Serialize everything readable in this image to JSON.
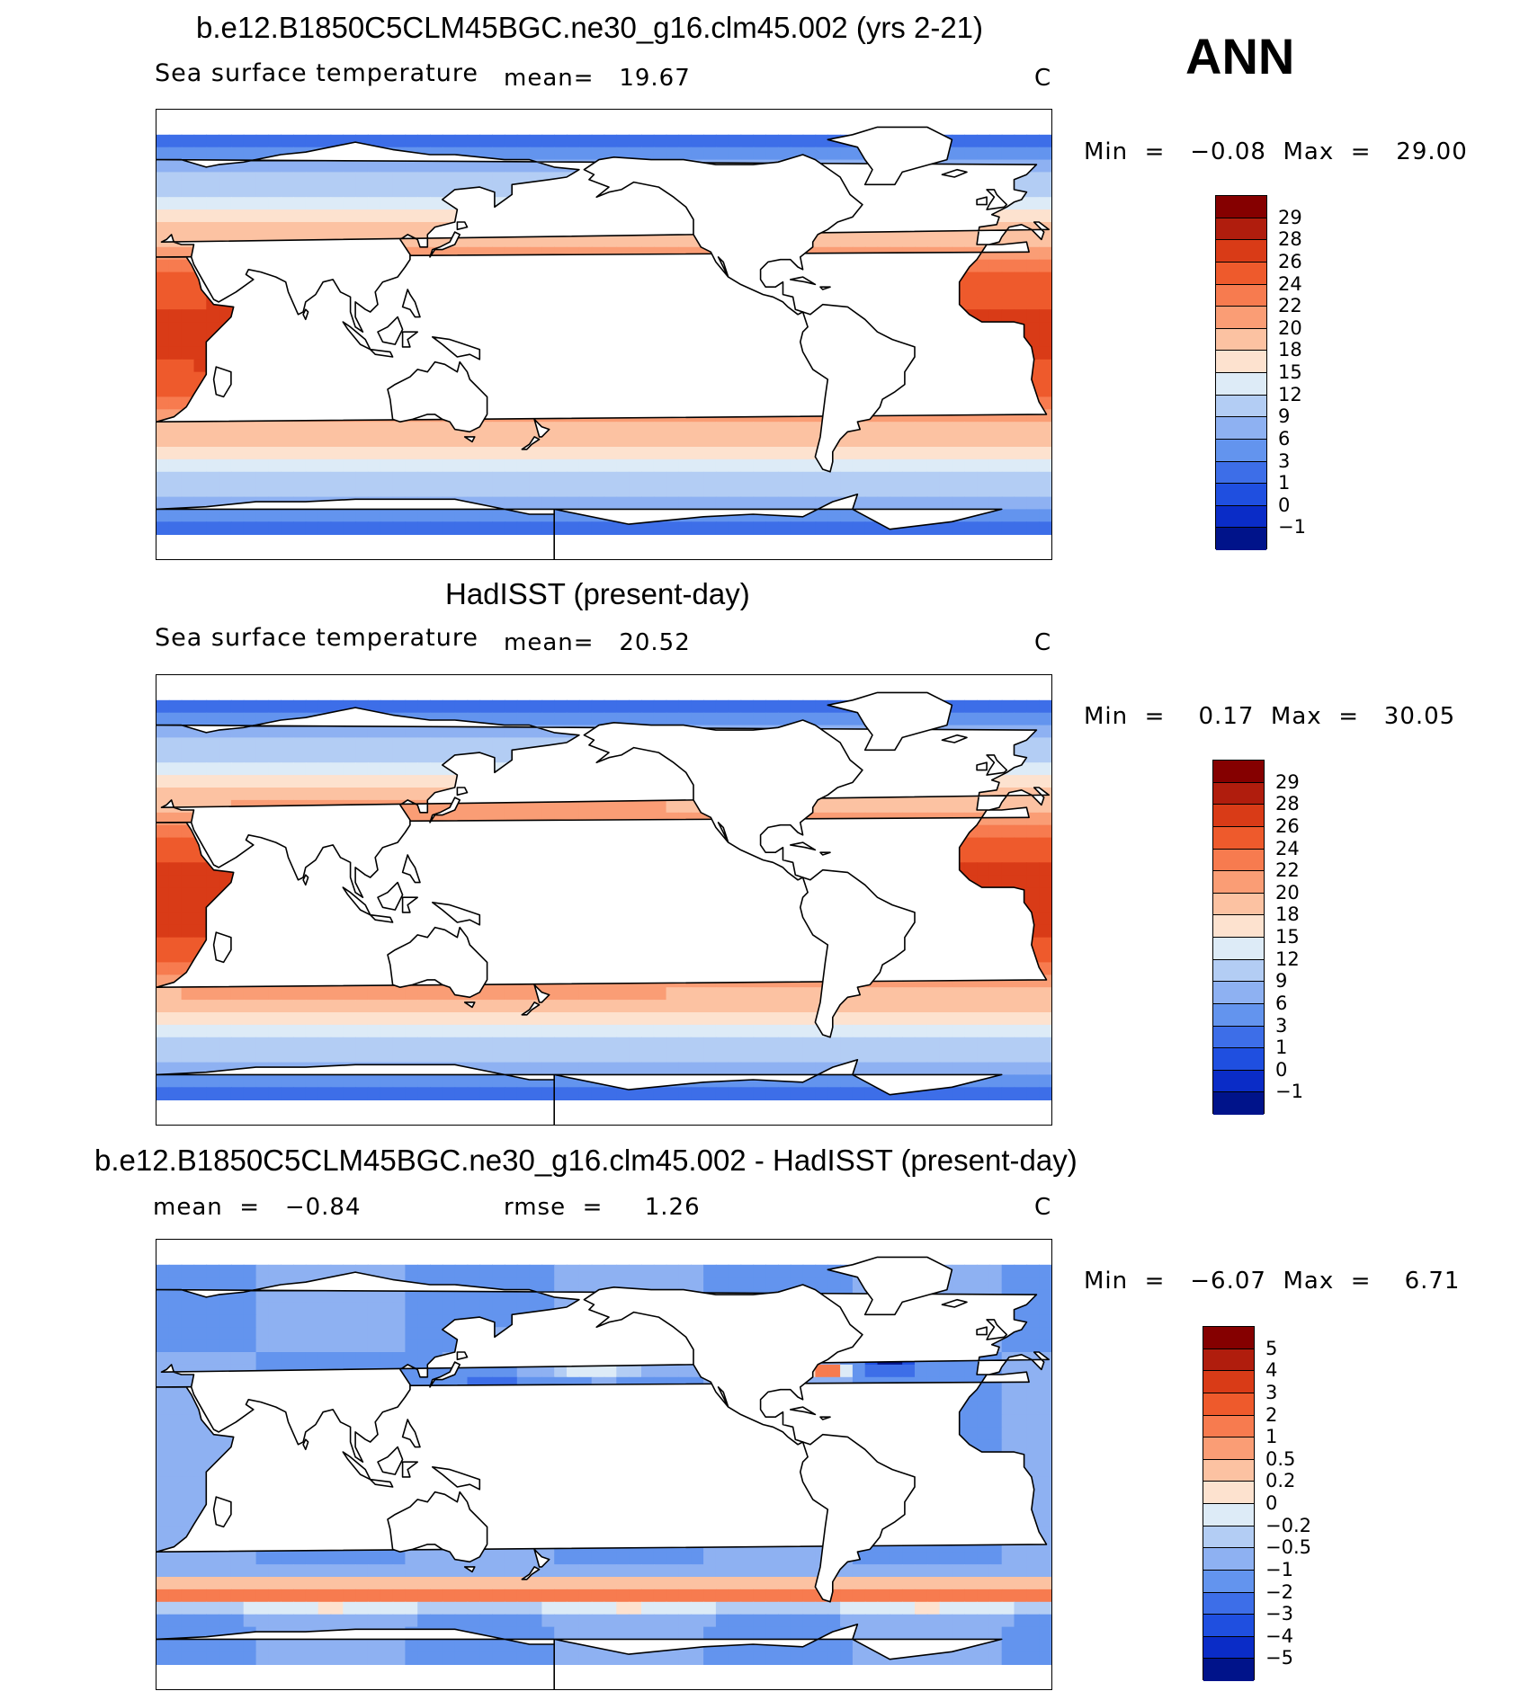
{
  "season": "ANN",
  "panels": [
    {
      "title": "b.e12.B1850C5CLM45BGC.ne30_g16.clm45.002 (yrs 2-21)",
      "variable": "Sea surface temperature",
      "stat_text": "mean=   19.67",
      "units": "C",
      "minmax": "Min  =   −0.08  Max  =   29.00",
      "field": "model",
      "colorbar_labels": [
        "29",
        "28",
        "26",
        "24",
        "22",
        "20",
        "18",
        "15",
        "12",
        "9",
        "6",
        "3",
        "1",
        "0",
        "−1"
      ],
      "colorbar_colors": [
        "#850000",
        "#b01d0d",
        "#d93b17",
        "#ee5a2c",
        "#f77b4f",
        "#fa9d75",
        "#fcc2a2",
        "#fde2cf",
        "#ddebf7",
        "#b3cdf4",
        "#8eb1f2",
        "#6394ee",
        "#3d6ee8",
        "#1f4fe0",
        "#0a2cc7",
        "#00138a"
      ]
    },
    {
      "title": "HadISST (present-day)",
      "variable": "Sea surface temperature",
      "stat_text": "mean=   20.52",
      "units": "C",
      "minmax": "Min  =    0.17  Max  =   30.05",
      "field": "obs",
      "colorbar_labels": [
        "29",
        "28",
        "26",
        "24",
        "22",
        "20",
        "18",
        "15",
        "12",
        "9",
        "6",
        "3",
        "1",
        "0",
        "−1"
      ],
      "colorbar_colors": [
        "#850000",
        "#b01d0d",
        "#d93b17",
        "#ee5a2c",
        "#f77b4f",
        "#fa9d75",
        "#fcc2a2",
        "#fde2cf",
        "#ddebf7",
        "#b3cdf4",
        "#8eb1f2",
        "#6394ee",
        "#3d6ee8",
        "#1f4fe0",
        "#0a2cc7",
        "#00138a"
      ]
    },
    {
      "title": "b.e12.B1850C5CLM45BGC.ne30_g16.clm45.002 - HadISST (present-day)",
      "variable": "",
      "stat_text": "mean  =   −0.84",
      "stat_text2": "rmse  =     1.26",
      "units": "C",
      "minmax": "Min  =   −6.07  Max  =    6.71",
      "field": "diff",
      "colorbar_labels": [
        "5",
        "4",
        "3",
        "2",
        "1",
        "0.5",
        "0.2",
        "0",
        "−0.2",
        "−0.5",
        "−1",
        "−2",
        "−3",
        "−4",
        "−5"
      ],
      "colorbar_colors": [
        "#850000",
        "#b01d0d",
        "#d93b17",
        "#ee5a2c",
        "#f77b4f",
        "#fa9d75",
        "#fcc2a2",
        "#fde2cf",
        "#ddebf7",
        "#b3cdf4",
        "#8eb1f2",
        "#6394ee",
        "#3d6ee8",
        "#1f4fe0",
        "#0a2cc7",
        "#00138a"
      ]
    }
  ]
}
